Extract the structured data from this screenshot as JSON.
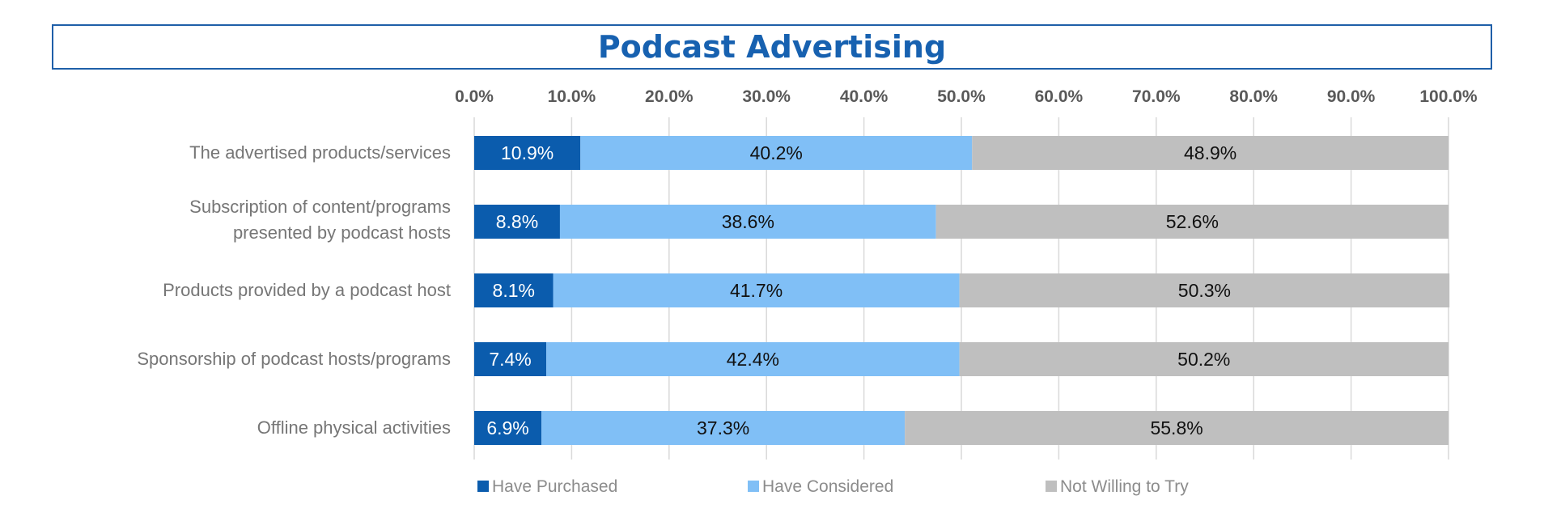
{
  "chart_data": {
    "type": "bar",
    "orientation": "horizontal",
    "stacked": true,
    "title": "Podcast Advertising",
    "categories": [
      [
        "The advertised products/services"
      ],
      [
        "Subscription of content/programs",
        "presented by podcast hosts"
      ],
      [
        "Products provided by a podcast host"
      ],
      [
        "Sponsorship of podcast hosts/programs"
      ],
      [
        "Offline physical activities"
      ]
    ],
    "series": [
      {
        "name": "Have Purchased",
        "color": "#0b5cad",
        "label_color": "#ffffff",
        "values": [
          10.9,
          8.8,
          8.1,
          7.4,
          6.9
        ]
      },
      {
        "name": "Have Considered",
        "color": "#80bff6",
        "label_color": "#111111",
        "values": [
          40.2,
          38.6,
          41.7,
          42.4,
          37.3
        ]
      },
      {
        "name": "Not Willing to Try",
        "color": "#bfbfbf",
        "label_color": "#111111",
        "values": [
          48.9,
          52.6,
          50.3,
          50.2,
          55.8
        ]
      }
    ],
    "xlim": [
      0,
      100
    ],
    "x_ticks": [
      "0.0%",
      "10.0%",
      "20.0%",
      "30.0%",
      "40.0%",
      "50.0%",
      "60.0%",
      "70.0%",
      "80.0%",
      "90.0%",
      "100.0%"
    ],
    "grid": true,
    "legend_position": "bottom",
    "value_suffix": "%"
  }
}
